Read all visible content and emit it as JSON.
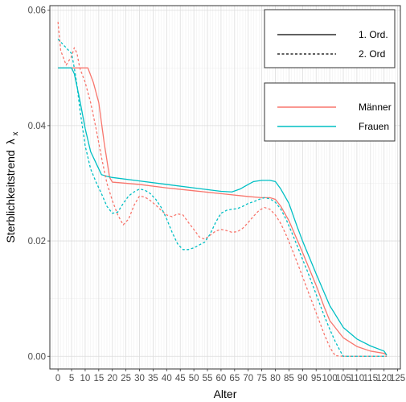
{
  "chart_data": {
    "type": "line",
    "xlabel": "Alter",
    "ylabel": "Sterblichkeitstrend",
    "ylabel_symbol": "λ",
    "ylabel_subscript": "x",
    "xlim": [
      -3,
      126
    ],
    "ylim": [
      -0.0022,
      0.0608
    ],
    "x_ticks": [
      0,
      5,
      10,
      15,
      20,
      25,
      30,
      35,
      40,
      45,
      50,
      55,
      60,
      65,
      70,
      75,
      80,
      85,
      90,
      95,
      100,
      105,
      110,
      115,
      120,
      125
    ],
    "x_tick_labels": [
      "0",
      "5",
      "10",
      "15",
      "20",
      "25",
      "30",
      "35",
      "40",
      "45",
      "50",
      "55",
      "60",
      "65",
      "70",
      "75",
      "80",
      "85",
      "90",
      "95",
      "100",
      "105",
      "110",
      "115",
      "120",
      "125"
    ],
    "y_ticks": [
      0,
      0.02,
      0.04,
      0.06
    ],
    "y_tick_labels": [
      "0.00",
      "0.02",
      "0.04",
      "0.06"
    ],
    "grid": true,
    "minor_grid_x_step": 1,
    "legend_position": "top-right",
    "legend_linetype": [
      {
        "label": "1. Ord.",
        "dash": "solid"
      },
      {
        "label": "2. Ord",
        "dash": "dashed"
      }
    ],
    "legend_color": [
      {
        "label": "Männer",
        "color": "#F8766D"
      },
      {
        "label": "Frauen",
        "color": "#00BFC4"
      }
    ],
    "series": [
      {
        "sex": "Männer",
        "order": "1. Ord.",
        "color": "#F8766D",
        "dash": "solid",
        "x": [
          0,
          10,
          11,
          13,
          15,
          17,
          19,
          20,
          30,
          40,
          50,
          60,
          70,
          75,
          78,
          80,
          82,
          85,
          88,
          90,
          95,
          98,
          100,
          105,
          110,
          115,
          120,
          121
        ],
        "y": [
          0.05,
          0.05,
          0.05,
          0.0475,
          0.044,
          0.037,
          0.031,
          0.0302,
          0.0298,
          0.0292,
          0.0287,
          0.0282,
          0.0277,
          0.0275,
          0.0275,
          0.0272,
          0.026,
          0.0235,
          0.0202,
          0.018,
          0.0123,
          0.0085,
          0.0062,
          0.0032,
          0.0017,
          0.0009,
          0.0005,
          0.0002
        ]
      },
      {
        "sex": "Frauen",
        "order": "1. Ord.",
        "color": "#00BFC4",
        "dash": "solid",
        "x": [
          0,
          5,
          6,
          8,
          10,
          12,
          14,
          16,
          18,
          20,
          30,
          40,
          50,
          60,
          64,
          67,
          70,
          72,
          75,
          78,
          80,
          82,
          85,
          88,
          90,
          95,
          100,
          105,
          110,
          115,
          120,
          121
        ],
        "y": [
          0.05,
          0.05,
          0.049,
          0.0445,
          0.0395,
          0.0355,
          0.0335,
          0.0315,
          0.0312,
          0.031,
          0.0304,
          0.0298,
          0.0292,
          0.0286,
          0.0285,
          0.029,
          0.0298,
          0.0303,
          0.0305,
          0.0305,
          0.0303,
          0.029,
          0.0265,
          0.0225,
          0.02,
          0.0143,
          0.0088,
          0.005,
          0.003,
          0.0018,
          0.0009,
          0.0002
        ]
      },
      {
        "sex": "Männer",
        "order": "2. Ord",
        "color": "#F8766D",
        "dash": "dashed",
        "x": [
          0,
          1,
          3,
          5,
          6,
          7,
          8,
          10,
          12,
          14,
          16,
          18,
          20,
          22,
          24,
          26,
          28,
          30,
          32,
          34,
          36,
          38,
          40,
          42,
          44,
          46,
          48,
          50,
          52,
          54,
          56,
          58,
          60,
          62,
          64,
          66,
          68,
          70,
          72,
          74,
          76,
          78,
          80,
          82,
          84,
          86,
          88,
          90,
          92,
          94,
          96,
          98,
          100,
          102,
          105,
          110,
          115,
          120,
          121
        ],
        "y": [
          0.058,
          0.053,
          0.0505,
          0.052,
          0.0535,
          0.0525,
          0.05,
          0.0475,
          0.044,
          0.0395,
          0.0345,
          0.03,
          0.027,
          0.0245,
          0.0228,
          0.0238,
          0.0262,
          0.0278,
          0.0276,
          0.027,
          0.0262,
          0.0253,
          0.0245,
          0.0242,
          0.0247,
          0.0245,
          0.0232,
          0.022,
          0.0207,
          0.0203,
          0.021,
          0.0217,
          0.022,
          0.0218,
          0.0215,
          0.0216,
          0.0222,
          0.0232,
          0.0243,
          0.0253,
          0.0258,
          0.0255,
          0.0245,
          0.023,
          0.021,
          0.0187,
          0.0163,
          0.0138,
          0.0113,
          0.0088,
          0.0063,
          0.0038,
          0.0016,
          0.0001,
          0,
          0,
          0,
          0,
          0
        ]
      },
      {
        "sex": "Frauen",
        "order": "2. Ord",
        "color": "#00BFC4",
        "dash": "dashed",
        "x": [
          0,
          1,
          3,
          5,
          6,
          7,
          8,
          10,
          12,
          14,
          16,
          18,
          20,
          22,
          24,
          26,
          28,
          30,
          32,
          34,
          36,
          38,
          40,
          42,
          44,
          46,
          48,
          50,
          52,
          54,
          56,
          58,
          60,
          62,
          64,
          66,
          68,
          70,
          72,
          74,
          76,
          78,
          80,
          82,
          84,
          86,
          88,
          90,
          92,
          94,
          96,
          98,
          100,
          102,
          104,
          105,
          110,
          115,
          120,
          121
        ],
        "y": [
          0.055,
          0.0545,
          0.0535,
          0.0525,
          0.05,
          0.047,
          0.043,
          0.0365,
          0.0325,
          0.0302,
          0.0282,
          0.026,
          0.0248,
          0.025,
          0.0265,
          0.0278,
          0.0285,
          0.029,
          0.0288,
          0.0282,
          0.0272,
          0.0258,
          0.0238,
          0.0215,
          0.0195,
          0.0185,
          0.0185,
          0.0188,
          0.0193,
          0.0198,
          0.0212,
          0.0232,
          0.0248,
          0.0253,
          0.0255,
          0.0256,
          0.026,
          0.0265,
          0.0268,
          0.0272,
          0.0275,
          0.0273,
          0.0267,
          0.0255,
          0.0237,
          0.0215,
          0.0192,
          0.0168,
          0.0145,
          0.012,
          0.0095,
          0.007,
          0.0047,
          0.0026,
          0.0008,
          0,
          0,
          0,
          0,
          0
        ]
      }
    ]
  }
}
